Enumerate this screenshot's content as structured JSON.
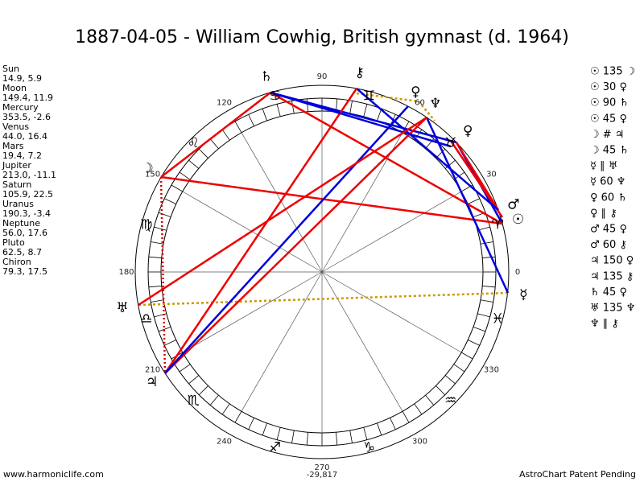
{
  "header": {
    "title": "1887-04-05 - William Cowhig, British gymnast (d. 1964)"
  },
  "planets": [
    {
      "name": "Sun",
      "glyph": "☉",
      "position": "14.9, 5.9"
    },
    {
      "name": "Moon",
      "glyph": "☽",
      "position": "149.4, 11.9"
    },
    {
      "name": "Mercury",
      "glyph": "☿",
      "position": "353.5, -2.6"
    },
    {
      "name": "Venus",
      "glyph": "♀",
      "position": "44.0, 16.4"
    },
    {
      "name": "Mars",
      "glyph": "♂",
      "position": "19.4, 7.2"
    },
    {
      "name": "Jupiter",
      "glyph": "♃",
      "position": "213.0, -11.1"
    },
    {
      "name": "Saturn",
      "glyph": "♄",
      "position": "105.9, 22.5"
    },
    {
      "name": "Uranus",
      "glyph": "♅",
      "position": "190.3, -3.4"
    },
    {
      "name": "Neptune",
      "glyph": "♆",
      "position": "56.0, 17.6"
    },
    {
      "name": "Pluto",
      "glyph": "♀",
      "position": "62.5, 8.7"
    },
    {
      "name": "Chiron",
      "glyph": "⚷",
      "position": "79.3, 17.5"
    }
  ],
  "signs": [
    "♈",
    "♉",
    "♊",
    "♋",
    "♌",
    "♍",
    "♎",
    "♏",
    "♐",
    "♑",
    "♒",
    "♓"
  ],
  "degree_labels": [
    0,
    30,
    60,
    90,
    120,
    150,
    180,
    210,
    240,
    270,
    300,
    330
  ],
  "aspects": [
    "☉ 135 ☽",
    "☉ 30 ♀",
    "☉ 90 ♄",
    "☉ 45 ♀",
    "☽ # ♃",
    "☽ 45 ♄",
    "☿ ∥ ♅",
    "☿ 60 ♆",
    "♀ 60 ♄",
    "♀ ∥ ⚷",
    "♂ 45 ♀",
    "♂ 60 ⚷",
    "♃ 150 ♀",
    "♃ 135 ⚷",
    "♄ 45 ♀",
    "♅ 135 ♆",
    "♆ ∥ ⚷"
  ],
  "wheel": {
    "bottom_value": "-29,817"
  },
  "footer": {
    "left": "www.harmoniclife.com",
    "right": "AstroChart Patent Pending"
  }
}
